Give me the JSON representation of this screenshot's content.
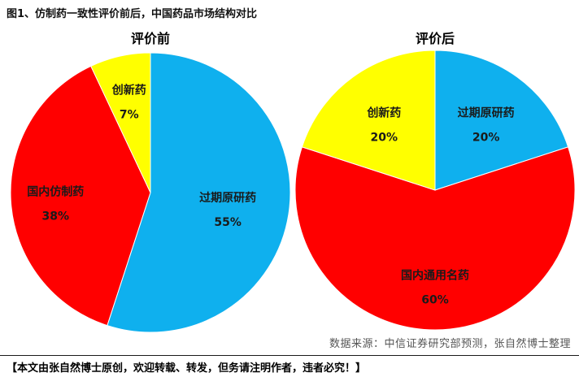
{
  "figure_title": "图1、仿制药一致性评价前后，中国药品市场结构对比",
  "source_note": "数据来源：中信证券研究部预测，张自然博士整理",
  "notice": "【本文由张自然博士原创，欢迎转载、转发，但务请注明作者，违者必究！】",
  "colors": {
    "blue": "#0fb0ee",
    "red": "#ff0000",
    "yellow": "#ffff00"
  },
  "chart_data": [
    {
      "type": "pie",
      "title": "评价前",
      "slices": [
        {
          "label": "过期原研药",
          "value": 55,
          "value_text": "55%",
          "color": "#0fb0ee"
        },
        {
          "label": "国内仿制药",
          "value": 38,
          "value_text": "38%",
          "color": "#ff0000"
        },
        {
          "label": "创新药",
          "value": 7,
          "value_text": "7%",
          "color": "#ffff00"
        }
      ]
    },
    {
      "type": "pie",
      "title": "评价后",
      "slices": [
        {
          "label": "过期原研药",
          "value": 20,
          "value_text": "20%",
          "color": "#0fb0ee"
        },
        {
          "label": "国内通用名药",
          "value": 60,
          "value_text": "60%",
          "color": "#ff0000"
        },
        {
          "label": "创新药",
          "value": 20,
          "value_text": "20%",
          "color": "#ffff00"
        }
      ]
    }
  ]
}
